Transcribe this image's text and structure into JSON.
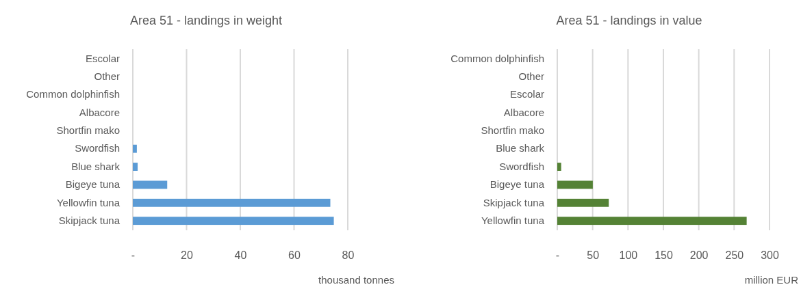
{
  "chart_data": [
    {
      "type": "bar",
      "orientation": "horizontal",
      "title": "Area 51 - landings in weight",
      "xlabel": "thousand tonnes",
      "categories": [
        "Escolar",
        "Other",
        "Common dolphinfish",
        "Albacore",
        "Shortfin mako",
        "Swordfish",
        "Blue shark",
        "Bigeye tuna",
        "Yellowfin tuna",
        "Skipjack tuna"
      ],
      "values": [
        0,
        0,
        0,
        0,
        0,
        1.5,
        1.8,
        12.8,
        73.5,
        74.8
      ],
      "color": "#5b9bd5",
      "xlim": [
        0,
        80
      ],
      "xticks": [
        {
          "value": 0,
          "label": "-"
        },
        20,
        40,
        60,
        80
      ],
      "grid": "x"
    },
    {
      "type": "bar",
      "orientation": "horizontal",
      "title": "Area 51 - landings in value",
      "xlabel": "million EUR",
      "categories": [
        "Common dolphinfish",
        "Other",
        "Escolar",
        "Albacore",
        "Shortfin mako",
        "Blue shark",
        "Swordfish",
        "Bigeye tuna",
        "Skipjack tuna",
        "Yellowfin tuna"
      ],
      "values": [
        0,
        0,
        0,
        0,
        0,
        0,
        5.5,
        50.2,
        72.8,
        267.7
      ],
      "color": "#548235",
      "xlim": [
        0,
        300
      ],
      "xticks": [
        {
          "value": 0,
          "label": "-"
        },
        50,
        100,
        150,
        200,
        250,
        300
      ],
      "grid": "x"
    }
  ]
}
